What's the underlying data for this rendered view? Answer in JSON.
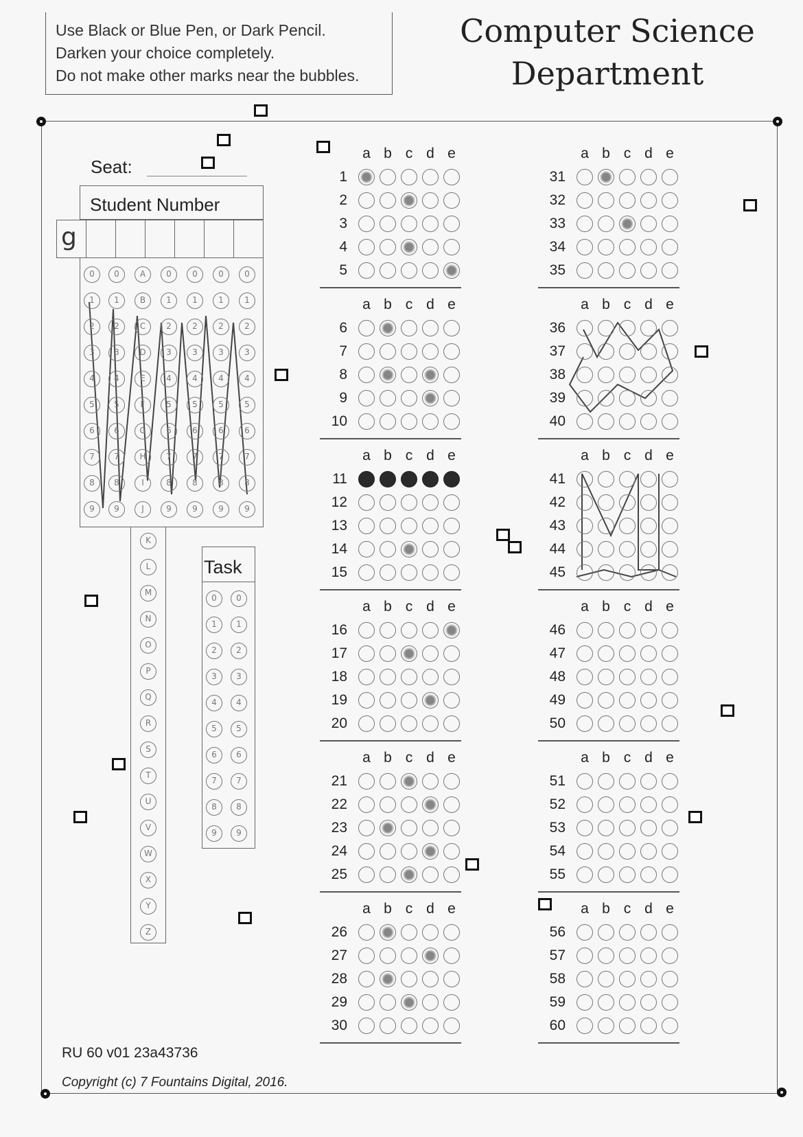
{
  "instructions": {
    "line1": "Use Black or Blue Pen, or Dark Pencil.",
    "line2": "Darken your choice completely.",
    "line3": "Do not make other marks near the bubbles."
  },
  "header": {
    "title_line1": "Computer Science",
    "title_line2": "Department"
  },
  "seat": {
    "label": "Seat:",
    "value": ""
  },
  "student_number": {
    "label": "Student Number",
    "entry": [
      "g",
      "",
      "",
      "",
      "",
      "",
      ""
    ],
    "digit_columns": 7,
    "letter_column": [
      "A",
      "B",
      "C",
      "D",
      "E",
      "F",
      "G",
      "H",
      "I",
      "J",
      "K",
      "L",
      "M",
      "N",
      "O",
      "P",
      "Q",
      "R",
      "S",
      "T",
      "U",
      "V",
      "W",
      "X",
      "Y",
      "Z"
    ]
  },
  "task": {
    "label": "Task"
  },
  "answer_options": [
    "a",
    "b",
    "c",
    "d",
    "e"
  ],
  "answers": {
    "1": "a",
    "2": "c",
    "4": "c",
    "5": "e",
    "6": "b",
    "8": "b,d",
    "9": "d",
    "11": "a,b,c,d,e",
    "14": "c",
    "16": "e",
    "17": "c",
    "19": "d",
    "21": "c",
    "22": "d",
    "23": "b",
    "24": "d",
    "25": "c",
    "26": "b",
    "27": "d",
    "28": "b",
    "29": "c",
    "31": "b",
    "33": "c"
  },
  "footer": {
    "form_code": "RU 60 v01 23a43736",
    "copyright": "Copyright (c) 7 Fountains Digital, 2016."
  }
}
